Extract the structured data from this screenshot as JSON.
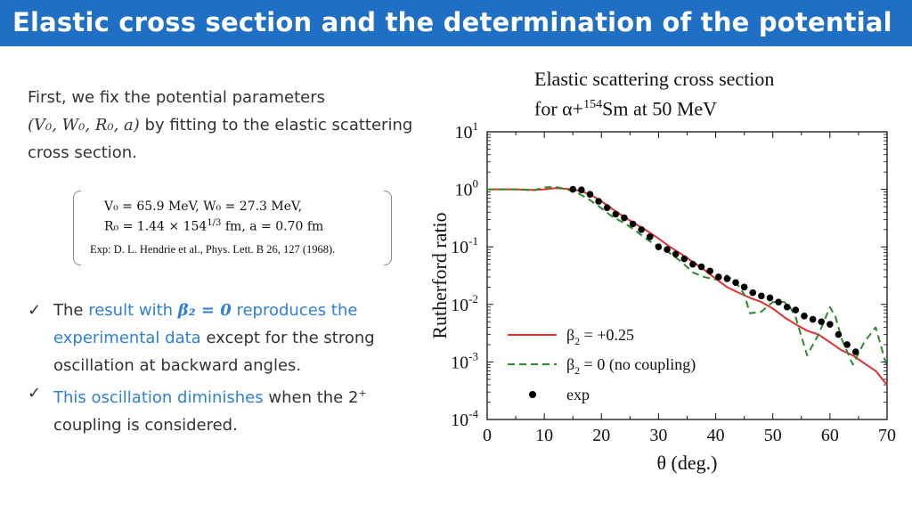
{
  "slide": {
    "title": "Elastic cross section and the determination of the potential"
  },
  "intro": {
    "line1": "First, we fix the potential parameters",
    "params": "(V₀, W₀, R₀, a)",
    "line2_rest": " by fitting to the elastic scattering",
    "line3": "cross section."
  },
  "params_box": {
    "line1": "V₀ = 65.9 MeV, W₀ = 27.3 MeV,",
    "line2_main": "R₀ = 1.44 × 154",
    "line2_exp": "1/3",
    "line2_rest": " fm, a = 0.70 fm",
    "reference": "Exp: D. L. Hendrie et al., Phys. Lett. B 26, 127 (1968)."
  },
  "bullets": [
    {
      "pre": "The ",
      "highlight1": "result with ",
      "beta": "β₂ = 0",
      "highlight2": " reproduces the experimental data",
      "post": " except for the strong oscillation at backward angles."
    },
    {
      "highlight": "This oscillation diminishes",
      "post": " when the 2",
      "sup": "+",
      "post2": " coupling is considered."
    }
  ],
  "chart_data": {
    "type": "line",
    "title_line1": "Elastic scattering cross section",
    "title_line2_pre": "for α+",
    "title_line2_sup": "154",
    "title_line2_post": "Sm at 50 MeV",
    "xlabel": "θ (deg.)",
    "ylabel": "Rutherford ratio",
    "xlim": [
      0,
      70
    ],
    "ylim": [
      0.0001,
      10
    ],
    "yscale": "log",
    "xticks": [
      0,
      10,
      20,
      30,
      40,
      50,
      60,
      70
    ],
    "yticks": [
      {
        "value": 10,
        "base": "10",
        "exp": "1"
      },
      {
        "value": 1,
        "base": "10",
        "exp": "0"
      },
      {
        "value": 0.1,
        "base": "10",
        "exp": "-1"
      },
      {
        "value": 0.01,
        "base": "10",
        "exp": "-2"
      },
      {
        "value": 0.001,
        "base": "10",
        "exp": "-3"
      },
      {
        "value": 0.0001,
        "base": "10",
        "exp": "-4"
      }
    ],
    "legend_position": "bottom-left",
    "series": [
      {
        "name": "β₂ = +0.25",
        "legend_base": "β",
        "legend_sub": "2",
        "legend_rest": " = +0.25",
        "color": "#e03030",
        "style": "solid",
        "x": [
          0,
          5,
          8,
          10,
          12,
          14,
          16,
          18,
          20,
          22,
          24,
          26,
          28,
          30,
          32,
          34,
          36,
          38,
          40,
          42,
          44,
          46,
          48,
          50,
          52,
          54,
          56,
          58,
          60,
          62,
          64,
          66,
          68,
          70
        ],
        "y": [
          1.0,
          1.0,
          0.98,
          1.0,
          1.05,
          1.02,
          0.95,
          0.82,
          0.62,
          0.45,
          0.33,
          0.25,
          0.19,
          0.14,
          0.1,
          0.075,
          0.055,
          0.04,
          0.028,
          0.02,
          0.016,
          0.013,
          0.011,
          0.0085,
          0.006,
          0.0045,
          0.0035,
          0.003,
          0.0022,
          0.0016,
          0.0013,
          0.00095,
          0.0007,
          0.0004
        ]
      },
      {
        "name": "β₂ = 0 (no coupling)",
        "legend_base": "β",
        "legend_sub": "2",
        "legend_rest": " = 0 (no coupling)",
        "color": "#2b8a2b",
        "style": "dashed",
        "x": [
          0,
          4,
          6,
          8,
          10,
          12,
          14,
          16,
          18,
          20,
          22,
          24,
          26,
          28,
          30,
          32,
          34,
          36,
          38,
          40,
          42,
          44,
          45,
          46,
          48,
          50,
          52,
          53,
          54,
          56,
          58,
          60,
          61,
          62,
          64,
          66,
          68,
          70
        ],
        "y": [
          1.0,
          1.0,
          1.0,
          0.95,
          1.08,
          1.1,
          1.0,
          0.85,
          0.65,
          0.47,
          0.33,
          0.26,
          0.19,
          0.135,
          0.1,
          0.078,
          0.055,
          0.036,
          0.03,
          0.027,
          0.032,
          0.021,
          0.015,
          0.007,
          0.0075,
          0.011,
          0.011,
          0.009,
          0.006,
          0.0013,
          0.003,
          0.009,
          0.006,
          0.0026,
          0.0009,
          0.0022,
          0.004,
          0.0008
        ]
      },
      {
        "name": "exp",
        "legend_base": "exp",
        "color": "#000000",
        "style": "markers",
        "x": [
          15,
          16.5,
          18,
          19.5,
          21,
          22.5,
          24,
          25.5,
          27,
          28.5,
          30,
          31.5,
          33,
          34.5,
          36,
          37.5,
          39,
          40.5,
          42,
          43.5,
          45,
          46.5,
          48,
          49.5,
          51,
          52.5,
          54,
          55.5,
          57,
          58.5,
          60,
          61.5,
          63,
          64.5
        ],
        "y": [
          1.0,
          0.98,
          0.82,
          0.62,
          0.48,
          0.37,
          0.32,
          0.25,
          0.2,
          0.15,
          0.1,
          0.09,
          0.075,
          0.062,
          0.05,
          0.045,
          0.038,
          0.03,
          0.028,
          0.024,
          0.02,
          0.016,
          0.014,
          0.013,
          0.011,
          0.009,
          0.008,
          0.0063,
          0.0055,
          0.005,
          0.0045,
          0.003,
          0.002,
          0.0015
        ]
      }
    ]
  }
}
